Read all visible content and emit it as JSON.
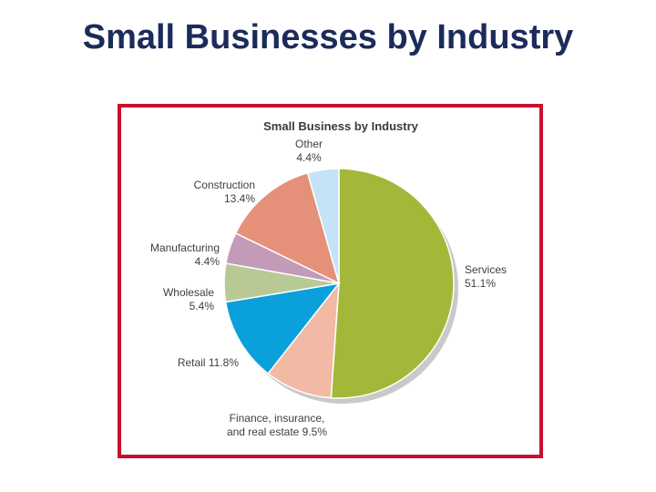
{
  "slide": {
    "title": "Small Businesses by Industry"
  },
  "colors": {
    "frame": "#c8102e",
    "title": "#1b2b5a"
  },
  "chart_data": {
    "type": "pie",
    "title": "Small Business by Industry",
    "legend": "none",
    "slices": [
      {
        "name": "Services",
        "value": 51.1,
        "label": "51.1%",
        "color": "#a3b839"
      },
      {
        "name": "Finance, insurance, and real estate",
        "label_lines": [
          "Finance, insurance,",
          "and real estate 9.5%"
        ],
        "value": 9.5,
        "label": "9.5%",
        "color": "#f2b9a4"
      },
      {
        "name": "Retail",
        "label_lines": [
          "Retail 11.8%"
        ],
        "value": 11.8,
        "label": "11.8%",
        "color": "#0aa0dc"
      },
      {
        "name": "Wholesale",
        "value": 5.4,
        "label": "5.4%",
        "color": "#b9c995"
      },
      {
        "name": "Manufacturing",
        "value": 4.4,
        "label": "4.4%",
        "color": "#c39ab8"
      },
      {
        "name": "Construction",
        "value": 13.4,
        "label": "13.4%",
        "color": "#e5917a"
      },
      {
        "name": "Other",
        "value": 4.4,
        "label": "4.4%",
        "color": "#c5e3f6"
      }
    ]
  }
}
